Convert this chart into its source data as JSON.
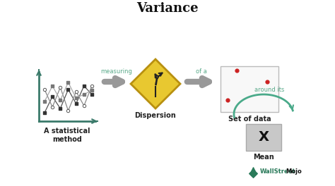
{
  "title": "Variance",
  "title_fontsize": 13,
  "title_fontweight": "bold",
  "bg_color": "#ffffff",
  "label1": "A statistical\nmethod",
  "label2": "Dispersion",
  "label3": "Set of data",
  "label4": "Mean",
  "arrow_label1": "measuring",
  "arrow_label2": "of a",
  "arrow_label3": "around its",
  "arrow_color": "#999999",
  "arrow_label_color": "#5aaa8a",
  "chart_color": "#3a7a6a",
  "diamond_fill": "#e8c830",
  "diamond_edge": "#b89010",
  "dot_color": "#cc2222",
  "watermark_color1": "#2a7a5a",
  "watermark_color2": "#111111",
  "label_fontsize": 7,
  "label_fontweight": "bold"
}
